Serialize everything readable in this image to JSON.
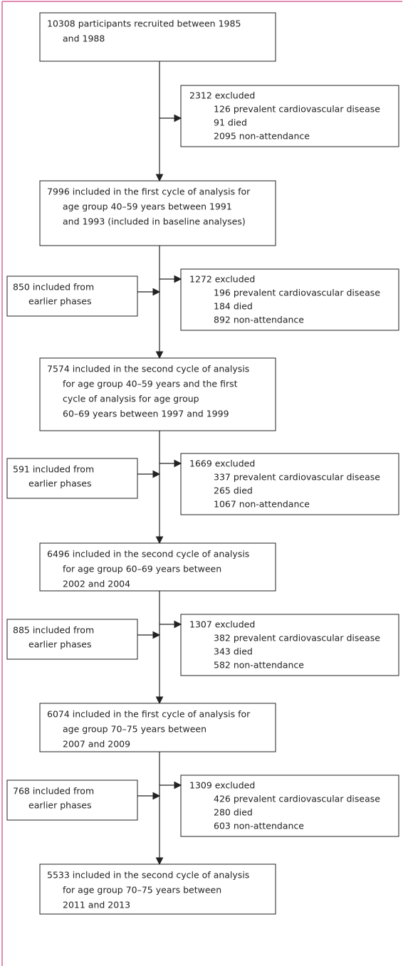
{
  "main": [
    {
      "lines": [
        "10308 participants recruited between 1985",
        "and 1988"
      ]
    },
    {
      "lines": [
        "7996 included in the first cycle of analysis for",
        "age group 40–59 years between 1991",
        "and 1993 (included in baseline analyses)"
      ]
    },
    {
      "lines": [
        "7574 included in the second cycle of analysis",
        "for age group 40–59 years and the first",
        "cycle of analysis for age group",
        "60–69 years between 1997 and 1999"
      ]
    },
    {
      "lines": [
        "6496 included in the second cycle of analysis",
        "for age group 60–69 years between",
        "2002 and 2004"
      ]
    },
    {
      "lines": [
        "6074 included in the first cycle of analysis for",
        "age group 70–75 years between",
        "2007 and 2009"
      ]
    },
    {
      "lines": [
        "5533 included in the second cycle of analysis",
        "for age group 70–75 years between",
        "2011 and 2013"
      ]
    }
  ],
  "excluded": [
    {
      "lines": [
        "2312 excluded",
        "126 prevalent cardiovascular disease",
        "91 died",
        "2095 non-attendance"
      ]
    },
    {
      "lines": [
        "1272 excluded",
        "196 prevalent cardiovascular disease",
        "184 died",
        "892 non-attendance"
      ]
    },
    {
      "lines": [
        "1669 excluded",
        "337 prevalent cardiovascular disease",
        "265 died",
        "1067 non-attendance"
      ]
    },
    {
      "lines": [
        "1307 excluded",
        "382 prevalent cardiovascular disease",
        "343 died",
        "582 non-attendance"
      ]
    },
    {
      "lines": [
        "1309 excluded",
        "426 prevalent cardiovascular disease",
        "280 died",
        "603 non-attendance"
      ]
    }
  ],
  "included": [
    {
      "lines": [
        "850 included from",
        "earlier phases"
      ]
    },
    {
      "lines": [
        "591 included from",
        "earlier phases"
      ]
    },
    {
      "lines": [
        "885 included from",
        "earlier phases"
      ]
    },
    {
      "lines": [
        "768 included from",
        "earlier phases"
      ]
    }
  ]
}
